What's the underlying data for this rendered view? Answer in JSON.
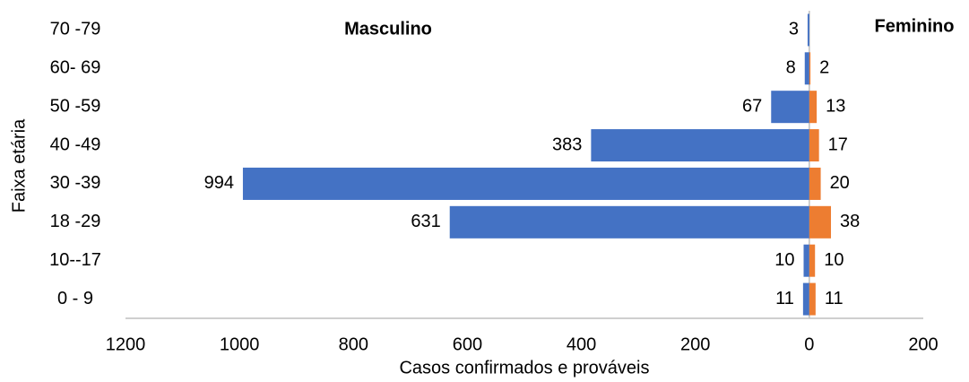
{
  "chart_data": {
    "type": "pyramid",
    "x_label": "Casos confirmados e prováveis",
    "y_label": "Faixa etária",
    "categories": [
      "70 -79",
      "60- 69",
      "50 -59",
      "40 -49",
      "30 -39",
      "18 -29",
      "10--17",
      "0 - 9"
    ],
    "series": [
      {
        "name": "Masculino",
        "color": "#4472c4",
        "side": "left",
        "values": [
          3,
          8,
          67,
          383,
          994,
          631,
          10,
          11
        ]
      },
      {
        "name": "Feminino",
        "color": "#ed7d31",
        "side": "right",
        "values": [
          null,
          2,
          13,
          17,
          20,
          38,
          10,
          11
        ]
      }
    ],
    "xlim": [
      -1200,
      200
    ],
    "xticks": [
      {
        "value": -1200,
        "label": "1200"
      },
      {
        "value": -1000,
        "label": "1000"
      },
      {
        "value": -800,
        "label": "800"
      },
      {
        "value": -600,
        "label": "600"
      },
      {
        "value": -400,
        "label": "400"
      },
      {
        "value": -200,
        "label": "200"
      },
      0,
      200
    ]
  }
}
